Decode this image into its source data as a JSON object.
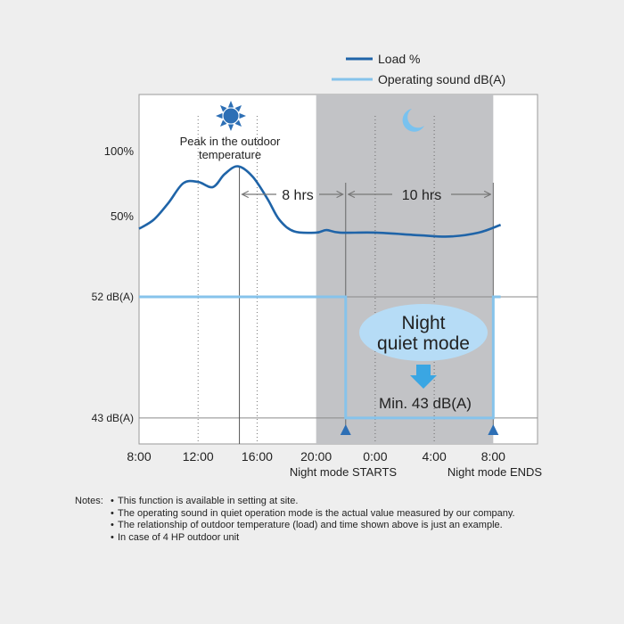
{
  "chart_data": {
    "type": "line",
    "legend": {
      "position": "top-right"
    },
    "series": [
      {
        "name": "Load %",
        "color": "#1f64a8",
        "points": [
          [
            8,
            40
          ],
          [
            9,
            47
          ],
          [
            10,
            60
          ],
          [
            11,
            75
          ],
          [
            12,
            76
          ],
          [
            13,
            72
          ],
          [
            13.8,
            82
          ],
          [
            14.7,
            88
          ],
          [
            15.7,
            80
          ],
          [
            16.7,
            63
          ],
          [
            17.5,
            47
          ],
          [
            18.5,
            38
          ],
          [
            20,
            37
          ],
          [
            20.7,
            39
          ],
          [
            21.6,
            37
          ],
          [
            24,
            37
          ],
          [
            27,
            35
          ],
          [
            29,
            34
          ],
          [
            31,
            37
          ],
          [
            32.5,
            43
          ]
        ]
      },
      {
        "name": "Operating sound dB(A)",
        "color": "#86c3eb",
        "points": [
          [
            8,
            52
          ],
          [
            22,
            52
          ],
          [
            22,
            43
          ],
          [
            32,
            43
          ],
          [
            32,
            52
          ],
          [
            32.5,
            52
          ]
        ]
      }
    ],
    "y_load_ticks": [
      {
        "value": 100,
        "label": "100%"
      },
      {
        "value": 50,
        "label": "50%"
      }
    ],
    "y_db_ticks": [
      {
        "value": 52,
        "label": "52 dB(A)"
      },
      {
        "value": 43,
        "label": "43 dB(A)"
      }
    ],
    "x_ticks": [
      {
        "value": 8,
        "label": "8:00"
      },
      {
        "value": 12,
        "label": "12:00"
      },
      {
        "value": 16,
        "label": "16:00"
      },
      {
        "value": 20,
        "label": "20:00"
      },
      {
        "value": 24,
        "label": "0:00"
      },
      {
        "value": 28,
        "label": "4:00"
      },
      {
        "value": 32,
        "label": "8:00"
      }
    ],
    "x_range": [
      8,
      35
    ],
    "night_band": [
      20,
      32
    ],
    "peak_x": 14.8,
    "night_start_x": 22,
    "night_end_x": 32,
    "annotations": {
      "peak_line1": "Peak in the outdoor",
      "peak_line2": "temperature",
      "span_8": "8 hrs",
      "span_10": "10 hrs",
      "quiet_line1": "Night",
      "quiet_line2": "quiet mode",
      "min_label": "Min. 43 dB(A)",
      "night_start_label": "Night mode STARTS",
      "night_end_label": "Night mode ENDS"
    },
    "colors": {
      "load": "#1f64a8",
      "sound": "#86c3eb",
      "night": "#c2c3c6",
      "plot_bg": "#ffffff",
      "arrow": "#3aa6e3",
      "marker": "#2d6fb5",
      "sun": "#2d6fb5",
      "moon": "#79c2ef",
      "bubble": "#b6dcf6"
    }
  },
  "notes": {
    "header": "Notes:",
    "items": [
      "This function is available in setting at site.",
      "The operating sound in quiet operation mode is the actual value measured by our company.",
      "The relationship of outdoor temperature (load) and time shown above is just an example.",
      "In case of 4 HP outdoor unit"
    ]
  }
}
